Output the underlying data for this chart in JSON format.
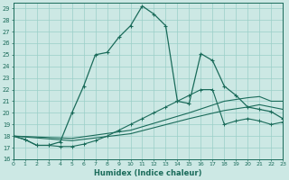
{
  "xlabel": "Humidex (Indice chaleur)",
  "xlim": [
    0,
    23
  ],
  "ylim": [
    16,
    29.5
  ],
  "yticks": [
    16,
    17,
    18,
    19,
    20,
    21,
    22,
    23,
    24,
    25,
    26,
    27,
    28,
    29
  ],
  "xticks": [
    0,
    1,
    2,
    3,
    4,
    5,
    6,
    7,
    8,
    9,
    10,
    11,
    12,
    13,
    14,
    15,
    16,
    17,
    18,
    19,
    20,
    21,
    22,
    23
  ],
  "bg_color": "#cce8e4",
  "grid_color": "#9acfc8",
  "line_color": "#1a6b5a",
  "line1_x": [
    0,
    1,
    2,
    3,
    4,
    5,
    6,
    7,
    8,
    9,
    10,
    11,
    12,
    13,
    14,
    15,
    16,
    17,
    18,
    19,
    20,
    21,
    22,
    23
  ],
  "line1_y": [
    18.0,
    17.7,
    17.2,
    17.2,
    17.5,
    20.0,
    22.3,
    25.0,
    25.2,
    26.5,
    27.5,
    29.2,
    28.5,
    27.5,
    21.0,
    20.8,
    25.1,
    24.5,
    22.3,
    21.5,
    20.5,
    20.3,
    20.1,
    19.5
  ],
  "line2_x": [
    0,
    5,
    10,
    15,
    18,
    20,
    21,
    22,
    23
  ],
  "line2_y": [
    18.0,
    17.8,
    18.5,
    20.0,
    21.0,
    21.3,
    21.4,
    21.0,
    21.0
  ],
  "line3_x": [
    0,
    5,
    10,
    15,
    18,
    20,
    21,
    22,
    23
  ],
  "line3_y": [
    18.0,
    17.6,
    18.2,
    19.5,
    20.2,
    20.5,
    20.7,
    20.5,
    20.3
  ],
  "line4_x": [
    0,
    1,
    2,
    3,
    4,
    5,
    6,
    7,
    8,
    9,
    10,
    11,
    12,
    13,
    14,
    15,
    16,
    17,
    18,
    19,
    20,
    21,
    22,
    23
  ],
  "line4_y": [
    18.0,
    17.7,
    17.2,
    17.2,
    17.1,
    17.1,
    17.3,
    17.6,
    18.0,
    18.5,
    19.0,
    19.5,
    20.0,
    20.5,
    21.0,
    21.5,
    22.0,
    22.0,
    19.0,
    19.3,
    19.5,
    19.3,
    19.0,
    19.2
  ]
}
